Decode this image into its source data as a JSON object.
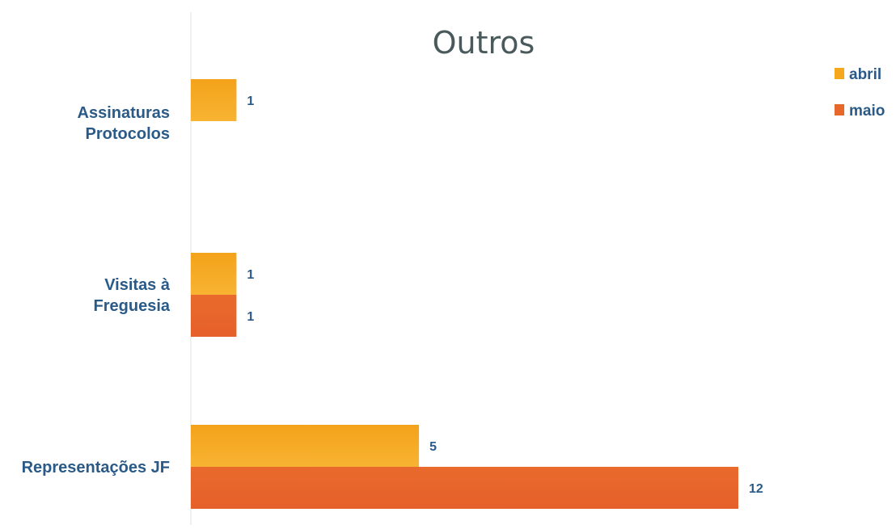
{
  "chart_data": {
    "type": "bar",
    "orientation": "horizontal",
    "title": "Outros",
    "categories": [
      [
        "Assinaturas",
        "Protocolos"
      ],
      [
        "Visitas à",
        "Freguesia"
      ],
      [
        "Representações JF"
      ]
    ],
    "series": [
      {
        "name": "abril",
        "color": "#f5a81c",
        "values": [
          1,
          1,
          5
        ]
      },
      {
        "name": "maio",
        "color": "#e8672a",
        "values": [
          null,
          1,
          12
        ]
      }
    ],
    "xlim": [
      0,
      12
    ],
    "grid": false,
    "legend": "top-right"
  }
}
